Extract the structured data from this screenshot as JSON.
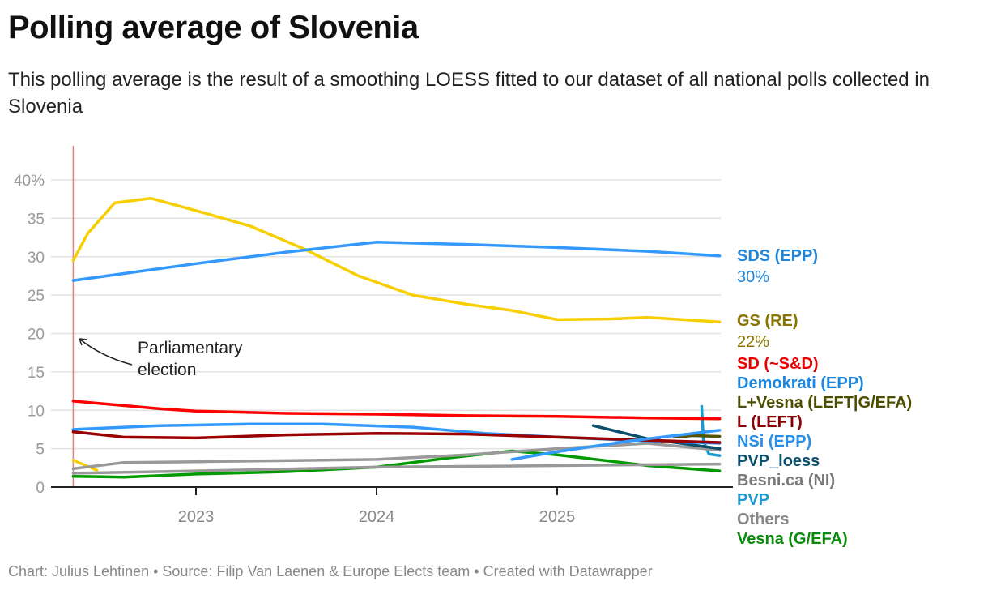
{
  "title": "Polling average of Slovenia",
  "subtitle": "This polling average is the result of a smoothing LOESS fitted to our dataset of all national polls collected in Slovenia",
  "footer": "Chart: Julius Lehtinen • Source: Filip Van Laenen & Europe Elects team • Created with Datawrapper",
  "chart_data": {
    "type": "line",
    "ylim": [
      0,
      40
    ],
    "xlim": [
      2022.2,
      2025.95
    ],
    "grid": true,
    "y_ticks": [
      "0",
      "5",
      "10",
      "15",
      "20",
      "25",
      "30",
      "35",
      "40%"
    ],
    "y_tick_values": [
      0,
      5,
      10,
      15,
      20,
      25,
      30,
      35,
      40
    ],
    "x_ticks": [
      "2023",
      "2024",
      "2025"
    ],
    "x_tick_values": [
      2023,
      2024,
      2025
    ],
    "annotation": {
      "text_line1": "Parliamentary",
      "text_line2": "election",
      "x": 2022.32
    },
    "series": [
      {
        "name": "SDS (EPP)",
        "value_label": "30%",
        "color": "#3399ff",
        "label_color": "#1f86d9",
        "x": [
          2022.32,
          2023,
          2023.5,
          2024,
          2024.5,
          2025,
          2025.5,
          2025.9
        ],
        "y": [
          26.9,
          29.1,
          30.6,
          31.9,
          31.6,
          31.2,
          30.7,
          30.1
        ]
      },
      {
        "name": "GS (RE)",
        "value_label": "22%",
        "color": "#f7cf00",
        "label_color": "#8a7400",
        "x": [
          2022.32,
          2022.4,
          2022.55,
          2022.75,
          2023,
          2023.3,
          2023.6,
          2023.9,
          2024.2,
          2024.5,
          2024.75,
          2025,
          2025.3,
          2025.5,
          2025.9
        ],
        "y": [
          29.5,
          33,
          37,
          37.6,
          36,
          34,
          31,
          27.5,
          25,
          23.8,
          23,
          21.8,
          21.9,
          22.1,
          21.5
        ]
      },
      {
        "name": "SD (~S&D)",
        "color": "#ff0000",
        "label_color": "#e60000",
        "x": [
          2022.32,
          2022.8,
          2023,
          2023.5,
          2024,
          2024.5,
          2025,
          2025.5,
          2025.9
        ],
        "y": [
          11.2,
          10.2,
          9.9,
          9.6,
          9.5,
          9.3,
          9.2,
          9.0,
          8.9
        ]
      },
      {
        "name": "Demokrati (EPP)",
        "color": "#3399ff",
        "label_color": "#1a87e0",
        "x": [
          2024.75,
          2025,
          2025.4,
          2025.9
        ],
        "y": [
          3.6,
          4.6,
          6.0,
          7.4
        ]
      },
      {
        "name": "L+Vesna (LEFT|G/EFA)",
        "color": "#555500",
        "label_color": "#4d4d00",
        "x": [
          2025.65,
          2025.75,
          2025.9
        ],
        "y": [
          6.5,
          6.7,
          6.6
        ]
      },
      {
        "name": "L (LEFT)",
        "color": "#990000",
        "label_color": "#8b0000",
        "x": [
          2022.32,
          2022.6,
          2023,
          2023.5,
          2024,
          2024.5,
          2025,
          2025.5,
          2025.9
        ],
        "y": [
          7.2,
          6.5,
          6.4,
          6.8,
          7.0,
          6.9,
          6.5,
          6.1,
          5.8
        ]
      },
      {
        "name": "NSi (EPP)",
        "color": "#3399ff",
        "label_color": "#2b8fe8",
        "x": [
          2022.32,
          2022.8,
          2023.3,
          2023.7,
          2024.2,
          2024.6,
          2025,
          2025.4,
          2025.9
        ],
        "y": [
          7.5,
          8.0,
          8.2,
          8.2,
          7.8,
          7.0,
          6.5,
          6.1,
          5.7
        ]
      },
      {
        "name": "PVP_loess",
        "color": "#0b4f6c",
        "label_color": "#0b4f6c",
        "x": [
          2025.2,
          2025.5,
          2025.9
        ],
        "y": [
          8.0,
          6.3,
          5.0
        ]
      },
      {
        "name": "Besni.ca (NI)",
        "color": "#999999",
        "label_color": "#7a7a7a",
        "x": [
          2022.32,
          2022.6,
          2023,
          2024,
          2024.5,
          2025,
          2025.5,
          2025.9
        ],
        "y": [
          2.4,
          3.2,
          3.3,
          3.6,
          4.2,
          5.0,
          5.7,
          4.8
        ]
      },
      {
        "name": "PVP",
        "color": "#1a9bd0",
        "label_color": "#1a9bd0",
        "x": [
          2025.8,
          2025.81,
          2025.84,
          2025.9
        ],
        "y": [
          10.5,
          6.0,
          4.3,
          4.1
        ]
      },
      {
        "name": "Others",
        "color": "#999999",
        "label_color": "#888888",
        "x": [
          2022.32,
          2023,
          2024,
          2025,
          2025.9
        ],
        "y": [
          1.8,
          2.1,
          2.6,
          2.8,
          3.0
        ]
      },
      {
        "name": "Vesna (G/EFA)",
        "color": "#009900",
        "label_color": "#0a8a0a",
        "x": [
          2022.32,
          2022.6,
          2023,
          2023.5,
          2024,
          2024.4,
          2024.75,
          2025,
          2025.5,
          2025.9
        ],
        "y": [
          1.4,
          1.3,
          1.7,
          2.0,
          2.6,
          3.8,
          4.7,
          4.2,
          2.8,
          2.1
        ]
      },
      {
        "color": "#f7cf00",
        "x": [
          2022.32,
          2022.45
        ],
        "y": [
          3.5,
          2.2
        ]
      }
    ]
  }
}
